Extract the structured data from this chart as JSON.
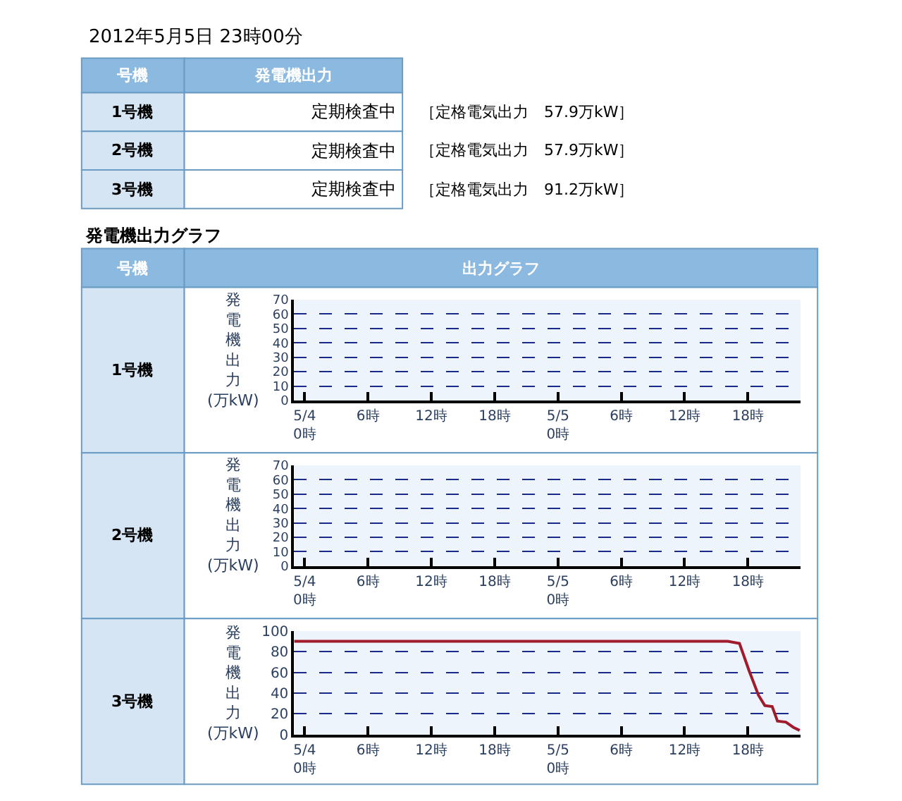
{
  "chart_data": [
    {
      "type": "other",
      "title": "2012年5月5日 23時00分",
      "annotations": [
        "号機",
        "発電機出力",
        "1号機",
        "定期検査中",
        "［定格電気出力　57.9万kW］",
        "2号機",
        "定期検査中",
        "［定格電気出力　57.9万kW］",
        "3号機",
        "定期検査中",
        "［定格電気出力　91.2万kW］"
      ]
    },
    {
      "type": "other",
      "title": "発電機出力グラフ",
      "annotations": [
        "号機",
        "出力グラフ",
        "1号機",
        "2号機",
        "3号機"
      ]
    },
    {
      "type": "line",
      "ylabel": "発電機出力\n(万kW)",
      "xlim": [
        "2012-05-03T23:00",
        "2012-05-05T23:00"
      ],
      "xticks": [
        {
          "value": "2012-05-04T00:00",
          "label": "5/4\n0時"
        },
        {
          "value": "2012-05-04T06:00",
          "label": "6時"
        },
        {
          "value": "2012-05-04T12:00",
          "label": "12時"
        },
        {
          "value": "2012-05-04T18:00",
          "label": "18時"
        },
        {
          "value": "2012-05-05T00:00",
          "label": "5/5\n0時"
        },
        {
          "value": "2012-05-05T06:00",
          "label": "6時"
        },
        {
          "value": "2012-05-05T12:00",
          "label": "12時"
        },
        {
          "value": "2012-05-05T18:00",
          "label": "18時"
        }
      ],
      "ylim": [
        0,
        70
      ],
      "yticks": [
        0,
        10,
        20,
        30,
        40,
        50,
        60,
        70
      ],
      "grid": "y"
    },
    {
      "type": "line",
      "ylabel": "発電機出力\n(万kW)",
      "xlim": [
        "2012-05-03T23:00",
        "2012-05-05T23:00"
      ],
      "xticks": [
        {
          "value": "2012-05-04T00:00",
          "label": "5/4\n0時"
        },
        {
          "value": "2012-05-04T06:00",
          "label": "6時"
        },
        {
          "value": "2012-05-04T12:00",
          "label": "12時"
        },
        {
          "value": "2012-05-04T18:00",
          "label": "18時"
        },
        {
          "value": "2012-05-05T00:00",
          "label": "5/5\n0時"
        },
        {
          "value": "2012-05-05T06:00",
          "label": "6時"
        },
        {
          "value": "2012-05-05T12:00",
          "label": "12時"
        },
        {
          "value": "2012-05-05T18:00",
          "label": "18時"
        }
      ],
      "ylim": [
        0,
        70
      ],
      "yticks": [
        0,
        10,
        20,
        30,
        40,
        50,
        60,
        70
      ],
      "grid": "y"
    },
    {
      "type": "line",
      "ylabel": "発電機出力\n(万kW)",
      "x": [
        "2012-05-03T23:00",
        "2012-05-05T16:06",
        "2012-05-05T17:12",
        "2012-05-05T18:06",
        "2012-05-05T19:00",
        "2012-05-05T19:36",
        "2012-05-05T20:18",
        "2012-05-05T20:48",
        "2012-05-05T21:36",
        "2012-05-05T22:18",
        "2012-05-05T22:54"
      ],
      "series": [
        {
          "color": "#a01c2c",
          "values": [
            90,
            90,
            88,
            62,
            38,
            28,
            27,
            13,
            12,
            7,
            4
          ]
        }
      ],
      "xlim": [
        "2012-05-03T23:00",
        "2012-05-05T23:00"
      ],
      "xticks": [
        {
          "value": "2012-05-04T00:00",
          "label": "5/4\n0時"
        },
        {
          "value": "2012-05-04T06:00",
          "label": "6時"
        },
        {
          "value": "2012-05-04T12:00",
          "label": "12時"
        },
        {
          "value": "2012-05-04T18:00",
          "label": "18時"
        },
        {
          "value": "2012-05-05T00:00",
          "label": "5/5\n0時"
        },
        {
          "value": "2012-05-05T06:00",
          "label": "6時"
        },
        {
          "value": "2012-05-05T12:00",
          "label": "12時"
        },
        {
          "value": "2012-05-05T18:00",
          "label": "18時"
        }
      ],
      "ylim": [
        0,
        100
      ],
      "yticks": [
        0,
        20,
        40,
        60,
        80,
        100
      ],
      "grid": "y",
      "line_style": "solid",
      "marker": "none"
    }
  ]
}
